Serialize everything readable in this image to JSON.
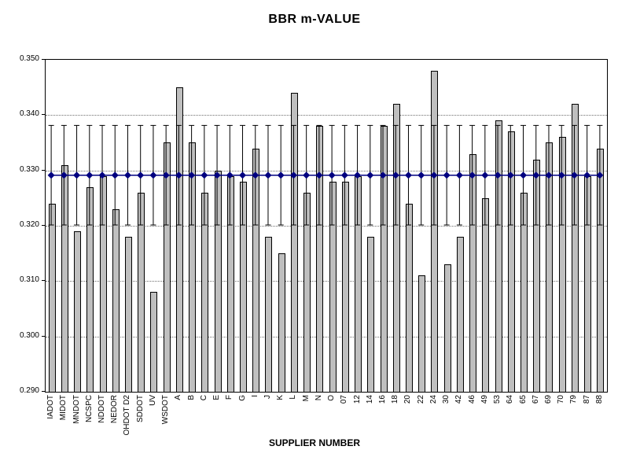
{
  "chart_data": {
    "type": "bar",
    "title": "BBR m-VALUE",
    "xlabel": "SUPPLIER NUMBER",
    "ylabel": "",
    "ylim": [
      0.29,
      0.35
    ],
    "ytick_step": 0.01,
    "grid": true,
    "legend": false,
    "bar_color": "#bfbfbf",
    "bar_border_color": "#000000",
    "categories": [
      "IADOT",
      "MIDOT",
      "MNDOT",
      "NCSPC",
      "NDDOT",
      "NEDOR",
      "OHDOT D2",
      "SDDOT",
      "UV",
      "WSDOT",
      "A",
      "B",
      "C",
      "E",
      "F",
      "G",
      "I",
      "J",
      "K",
      "L",
      "M",
      "N",
      "O",
      "07",
      "12",
      "14",
      "16",
      "18",
      "20",
      "22",
      "24",
      "30",
      "42",
      "46",
      "49",
      "53",
      "64",
      "65",
      "67",
      "69",
      "70",
      "79",
      "87",
      "88"
    ],
    "values": [
      0.324,
      0.331,
      0.319,
      0.327,
      0.329,
      0.323,
      0.318,
      0.326,
      0.308,
      0.335,
      0.345,
      0.335,
      0.326,
      0.33,
      0.329,
      0.328,
      0.334,
      0.318,
      0.315,
      0.344,
      0.326,
      0.338,
      0.328,
      0.328,
      0.329,
      0.318,
      0.338,
      0.342,
      0.324,
      0.311,
      0.348,
      0.313,
      0.318,
      0.333,
      0.325,
      0.339,
      0.337,
      0.326,
      0.332,
      0.335,
      0.336,
      0.342,
      0.329,
      0.334
    ],
    "reference_line": {
      "value": 0.329,
      "marker": "diamond",
      "color": "#000080"
    },
    "error_bars": {
      "low": 0.32,
      "high": 0.338,
      "color": "#000000"
    }
  }
}
